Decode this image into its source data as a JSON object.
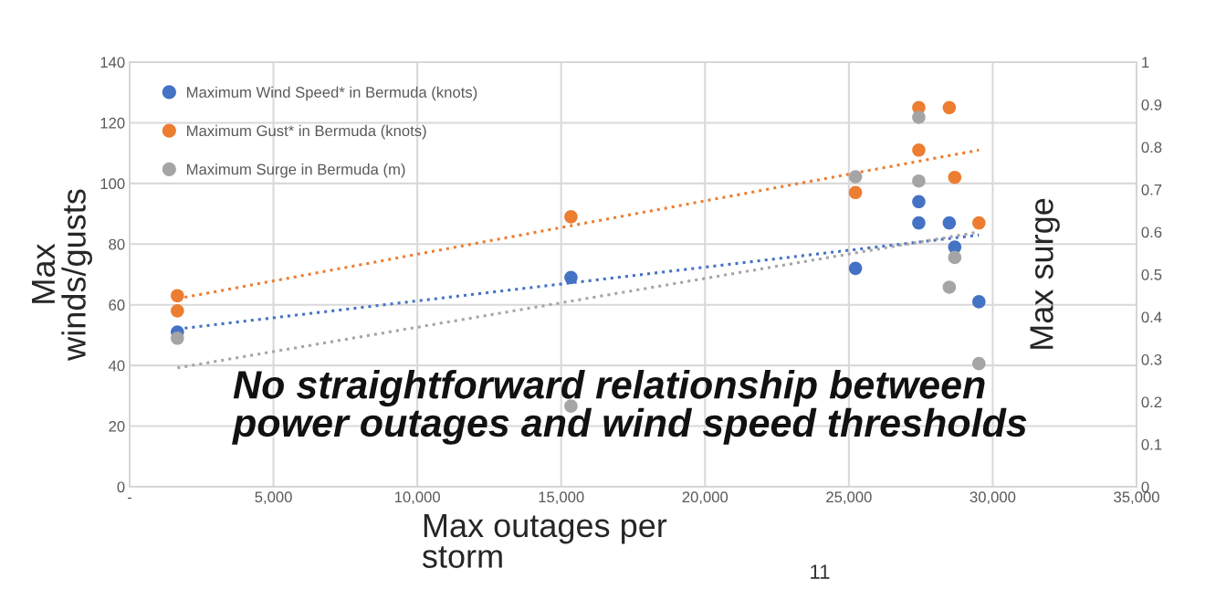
{
  "chart_data": {
    "type": "scatter",
    "xlabel": "Max outages per\nstorm",
    "ylabel": "Max\nwinds/gusts",
    "y2label": "Max surge",
    "xlim": [
      0,
      35000
    ],
    "xticks": [
      {
        "value": 0,
        "label": "-"
      },
      {
        "value": 5000,
        "label": "5,000"
      },
      {
        "value": 10000,
        "label": "10,000"
      },
      {
        "value": 15000,
        "label": "15,000"
      },
      {
        "value": 20000,
        "label": "20,000"
      },
      {
        "value": 25000,
        "label": "25,000"
      },
      {
        "value": 30000,
        "label": "30,000"
      },
      {
        "value": 35000,
        "label": "35,000"
      }
    ],
    "ylim": [
      0,
      140
    ],
    "yticks": [
      0,
      20,
      40,
      60,
      80,
      100,
      120,
      140
    ],
    "y2lim": [
      0,
      1
    ],
    "y2ticks": [
      0,
      0.1,
      0.2,
      0.3,
      0.4,
      0.5,
      0.6,
      0.7,
      0.8,
      0.9,
      1
    ],
    "grid": true,
    "legend": "top left",
    "marker": "circle",
    "series": [
      {
        "name": "Maximum Wind Speed* in Bermuda (knots)",
        "color": "#4472c4",
        "x": [
          1660,
          15340,
          25230,
          27430,
          27430,
          28490,
          28680,
          29520
        ],
        "values": [
          51,
          69,
          72,
          94,
          87,
          87,
          79,
          61
        ]
      },
      {
        "name": "Maximum Gust* in Bermuda (knots)",
        "color": "#ed7d31",
        "x": [
          1660,
          1660,
          15340,
          25230,
          27430,
          27430,
          28490,
          28680,
          29520
        ],
        "values": [
          63,
          58,
          89,
          97,
          125,
          111,
          125,
          102,
          87
        ]
      },
      {
        "name": "Maximum Surge in Bermuda (m)",
        "color": "#a5a5a5",
        "axis": "y2",
        "x": [
          1660,
          15340,
          25230,
          27430,
          27430,
          28490,
          28680,
          29520
        ],
        "values": [
          0.35,
          0.19,
          0.73,
          0.87,
          0.72,
          0.47,
          0.54,
          0.29
        ]
      },
      {
        "type": "line",
        "color": "#4472c4",
        "line_style": "dotted",
        "marker": "none",
        "x": [
          1660,
          29520
        ],
        "values": [
          52,
          83
        ]
      },
      {
        "type": "line",
        "color": "#ed7d31",
        "line_style": "dotted",
        "marker": "none",
        "x": [
          1660,
          29520
        ],
        "values": [
          62,
          111
        ]
      },
      {
        "type": "line",
        "color": "#a5a5a5",
        "line_style": "dotted",
        "marker": "none",
        "axis": "y2",
        "x": [
          1660,
          29520
        ],
        "values": [
          0.28,
          0.6
        ]
      }
    ],
    "annotations": [
      "No straightforward relationship between power outages and wind speed thresholds",
      "11"
    ]
  }
}
